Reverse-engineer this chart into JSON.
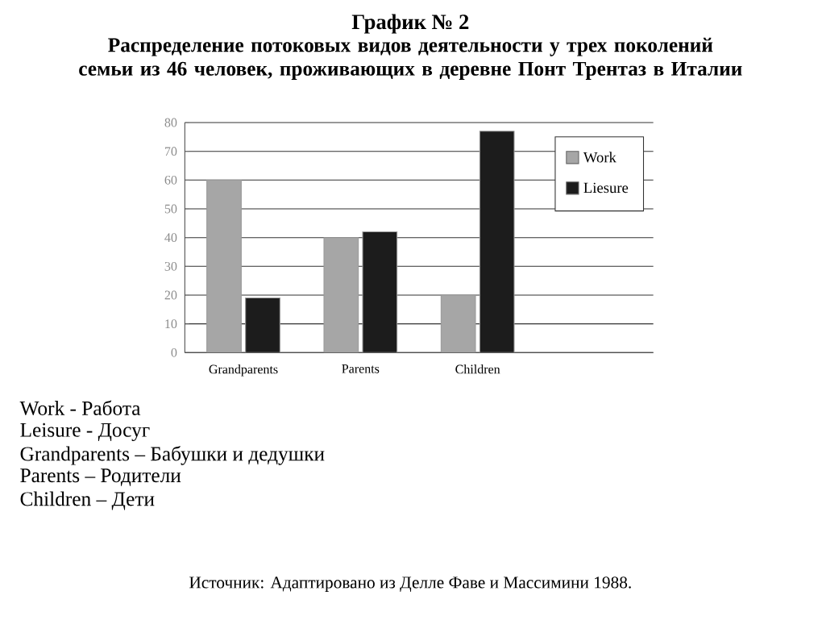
{
  "chart_data": {
    "type": "bar",
    "title": "График № 2",
    "subtitle": "Распределение потоковых видов деятельности у трех поколений семьи из 46 человек, проживающих в деревне Понт Трентаз в Италии",
    "categories": [
      "Grandparents",
      "Parents",
      "Children",
      null
    ],
    "series": [
      {
        "name": "Work",
        "color": "#a6a6a6",
        "values": [
          60,
          40,
          20,
          null
        ]
      },
      {
        "name": "Liesure",
        "color": "#1c1c1c",
        "values": [
          19,
          42,
          77,
          null
        ]
      }
    ],
    "ylim": [
      0,
      80
    ],
    "yticks": [
      0,
      10,
      20,
      30,
      40,
      50,
      60,
      70,
      80
    ],
    "grid": "y",
    "legend": "top right",
    "annotations": [
      "Work - Работа",
      "Leisure - Досуг",
      "Grandparents – Бабушки и дедушки",
      "Parents – Родители",
      "Children – Дети",
      "Источник: Адаптировано из Делле Фаве и Массимини 1988."
    ]
  }
}
